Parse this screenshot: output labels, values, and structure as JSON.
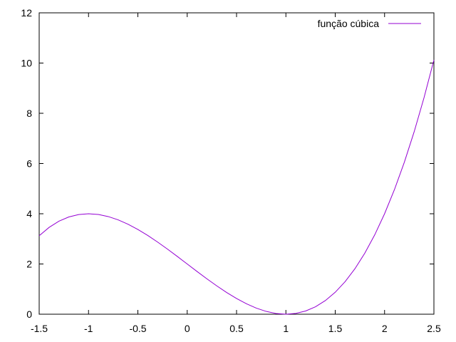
{
  "chart_data": {
    "type": "line",
    "title": "",
    "xlabel": "",
    "ylabel": "",
    "xlim": [
      -1.5,
      2.5
    ],
    "ylim": [
      0,
      12
    ],
    "xticks": [
      "-1.5",
      "-1",
      "-0.5",
      "0",
      "0.5",
      "1",
      "1.5",
      "2",
      "2.5"
    ],
    "yticks": [
      "0",
      "2",
      "4",
      "6",
      "8",
      "10",
      "12"
    ],
    "grid": false,
    "legend_position": "top-right",
    "series": [
      {
        "name": "função cúbica",
        "color": "#9400d3",
        "x": [
          -1.5,
          -1.4,
          -1.3,
          -1.2,
          -1.1,
          -1.0,
          -0.9,
          -0.8,
          -0.7,
          -0.6,
          -0.5,
          -0.4,
          -0.3,
          -0.2,
          -0.1,
          0.0,
          0.1,
          0.2,
          0.3,
          0.4,
          0.5,
          0.6,
          0.7,
          0.8,
          0.9,
          1.0,
          1.1,
          1.2,
          1.3,
          1.4,
          1.5,
          1.6,
          1.7,
          1.8,
          1.9,
          2.0,
          2.1,
          2.2,
          2.3,
          2.4,
          2.5
        ],
        "y": [
          3.125,
          3.456,
          3.703,
          3.872,
          3.969,
          4.0,
          3.971,
          3.888,
          3.757,
          3.584,
          3.375,
          3.136,
          2.873,
          2.592,
          2.299,
          2.0,
          1.701,
          1.408,
          1.127,
          0.864,
          0.625,
          0.416,
          0.243,
          0.112,
          0.029,
          0.0,
          0.031,
          0.128,
          0.297,
          0.544,
          0.875,
          1.296,
          1.813,
          2.432,
          3.159,
          4.0,
          4.961,
          6.048,
          7.267,
          8.624,
          10.125
        ]
      }
    ]
  }
}
